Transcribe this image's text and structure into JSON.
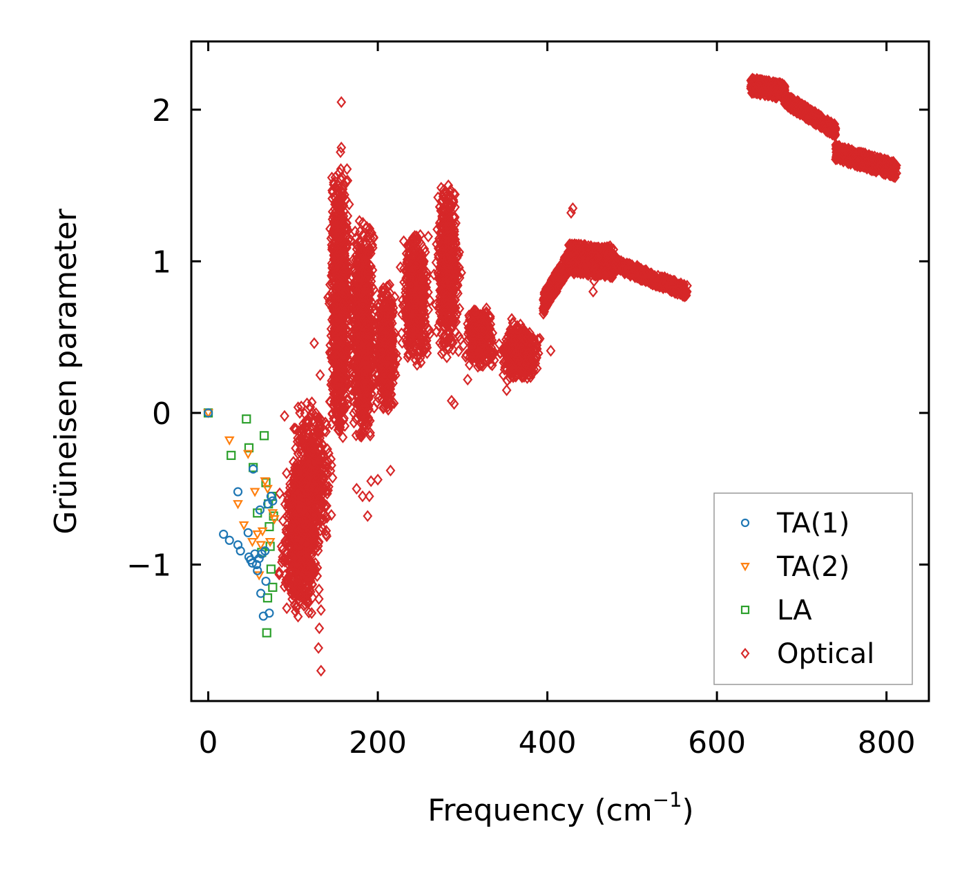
{
  "chart_data": {
    "type": "scatter",
    "title": "",
    "xlabel": "Frequency (cm",
    "xlabel_sup": "−1",
    "xlabel_close": ")",
    "ylabel": "Grüneisen parameter",
    "xlim": [
      -20,
      850
    ],
    "ylim": [
      -1.9,
      2.45
    ],
    "x_ticks": [
      0,
      200,
      400,
      600,
      800
    ],
    "x_tick_labels": [
      "0",
      "200",
      "400",
      "600",
      "800"
    ],
    "y_ticks": [
      -1,
      0,
      1,
      2
    ],
    "y_tick_labels": [
      "−1",
      "0",
      "1",
      "2"
    ],
    "grid": false,
    "legend_position": "lower-right",
    "series": [
      {
        "name": "TA(1)",
        "marker": "circle",
        "color": "#1f77b4",
        "points": [
          [
            0,
            0
          ],
          [
            18,
            -0.8
          ],
          [
            25,
            -0.84
          ],
          [
            35,
            -0.52
          ],
          [
            35,
            -0.87
          ],
          [
            38,
            -0.91
          ],
          [
            47,
            -0.79
          ],
          [
            48,
            -0.95
          ],
          [
            50,
            -0.97
          ],
          [
            52,
            -0.99
          ],
          [
            53,
            -0.37
          ],
          [
            55,
            -0.93
          ],
          [
            57,
            -1.0
          ],
          [
            58,
            -1.04
          ],
          [
            60,
            -0.96
          ],
          [
            61,
            -0.64
          ],
          [
            62,
            -1.19
          ],
          [
            63,
            -0.93
          ],
          [
            65,
            -1.34
          ],
          [
            67,
            -0.91
          ],
          [
            68,
            -1.11
          ],
          [
            70,
            -0.6
          ],
          [
            72,
            -1.32
          ],
          [
            74,
            -0.55
          ],
          [
            76,
            -0.58
          ]
        ]
      },
      {
        "name": "TA(2)",
        "marker": "triangle-down",
        "color": "#ff7f0e",
        "points": [
          [
            0,
            0
          ],
          [
            25,
            -0.18
          ],
          [
            35,
            -0.6
          ],
          [
            42,
            -0.74
          ],
          [
            47,
            -0.27
          ],
          [
            52,
            -0.85
          ],
          [
            55,
            -0.52
          ],
          [
            58,
            -0.8
          ],
          [
            60,
            -1.07
          ],
          [
            62,
            -0.87
          ],
          [
            64,
            -0.78
          ],
          [
            67,
            -0.45
          ],
          [
            70,
            -0.5
          ],
          [
            73,
            -0.85
          ],
          [
            76,
            -0.66
          ],
          [
            78,
            -0.7
          ]
        ]
      },
      {
        "name": "LA",
        "marker": "square",
        "color": "#2ca02c",
        "points": [
          [
            0,
            0
          ],
          [
            27,
            -0.28
          ],
          [
            45,
            -0.04
          ],
          [
            48,
            -0.23
          ],
          [
            53,
            -0.36
          ],
          [
            58,
            -0.66
          ],
          [
            63,
            -0.92
          ],
          [
            66,
            -0.15
          ],
          [
            68,
            -0.46
          ],
          [
            69,
            -1.45
          ],
          [
            70,
            -1.22
          ],
          [
            71,
            -0.6
          ],
          [
            72,
            -0.75
          ],
          [
            73,
            -0.88
          ],
          [
            74,
            -1.03
          ],
          [
            75,
            -0.55
          ],
          [
            76,
            -1.15
          ],
          [
            77,
            -0.68
          ]
        ]
      },
      {
        "name": "Optical",
        "marker": "diamond",
        "color": "#d62728",
        "generator": "dense",
        "clusters": [
          {
            "x": [
              80,
              135
            ],
            "y": [
              -1.35,
              -0.3
            ],
            "n": 650
          },
          {
            "x": [
              95,
              150
            ],
            "y": [
              -0.9,
              0.1
            ],
            "n": 450
          },
          {
            "x": [
              140,
              170
            ],
            "y": [
              -0.2,
              1.65
            ],
            "n": 900
          },
          {
            "x": [
              165,
              200
            ],
            "y": [
              -0.2,
              1.3
            ],
            "n": 850
          },
          {
            "x": [
              195,
              225
            ],
            "y": [
              0.0,
              0.85
            ],
            "n": 500
          },
          {
            "x": [
              225,
              265
            ],
            "y": [
              0.3,
              1.2
            ],
            "n": 550
          },
          {
            "x": [
              265,
              300
            ],
            "y": [
              0.35,
              1.55
            ],
            "n": 550
          },
          {
            "x": [
              300,
              340
            ],
            "y": [
              0.3,
              0.7
            ],
            "n": 380
          },
          {
            "x": [
              340,
              395
            ],
            "y": [
              0.2,
              0.6
            ],
            "n": 420
          }
        ],
        "band_segments": [
          {
            "x": [
              395,
              425
            ],
            "y": [
              0.72,
              1.0
            ],
            "width": 0.14,
            "n": 260
          },
          {
            "x": [
              425,
              480
            ],
            "y": [
              1.02,
              0.99
            ],
            "width": 0.2,
            "n": 380
          },
          {
            "x": [
              480,
              565
            ],
            "y": [
              0.98,
              0.8
            ],
            "width": 0.08,
            "n": 420
          },
          {
            "x": [
              640,
              680
            ],
            "y": [
              2.16,
              2.12
            ],
            "width": 0.1,
            "n": 300
          },
          {
            "x": [
              680,
              740
            ],
            "y": [
              2.07,
              1.86
            ],
            "width": 0.08,
            "n": 300
          },
          {
            "x": [
              740,
              812
            ],
            "y": [
              1.72,
              1.6
            ],
            "width": 0.1,
            "n": 360
          }
        ],
        "points": [
          [
            157,
            2.05
          ],
          [
            157,
            1.75
          ],
          [
            156,
            1.72
          ],
          [
            133,
            -1.7
          ],
          [
            130,
            -1.55
          ],
          [
            131,
            -1.42
          ],
          [
            133,
            -1.3
          ],
          [
            122,
            -1.32
          ],
          [
            112,
            -1.2
          ],
          [
            90,
            -0.02
          ],
          [
            108,
            0.0
          ],
          [
            120,
            -0.03
          ],
          [
            125,
            0.46
          ],
          [
            132,
            0.25
          ],
          [
            175,
            -0.5
          ],
          [
            182,
            -0.55
          ],
          [
            188,
            -0.68
          ],
          [
            190,
            -0.55
          ],
          [
            215,
            -0.38
          ],
          [
            192,
            -0.45
          ],
          [
            200,
            -0.44
          ],
          [
            287,
            0.08
          ],
          [
            290,
            0.06
          ],
          [
            306,
            0.22
          ],
          [
            404,
            0.41
          ],
          [
            390,
            0.48
          ],
          [
            430,
            1.35
          ],
          [
            428,
            1.32
          ],
          [
            474,
            1.1
          ],
          [
            454,
            0.8
          ],
          [
            455,
            0.87
          ],
          [
            506,
            0.97
          ],
          [
            358,
            0.62
          ],
          [
            352,
            0.15
          ],
          [
            348,
            0.25
          ],
          [
            323,
            0.55
          ]
        ]
      }
    ]
  }
}
